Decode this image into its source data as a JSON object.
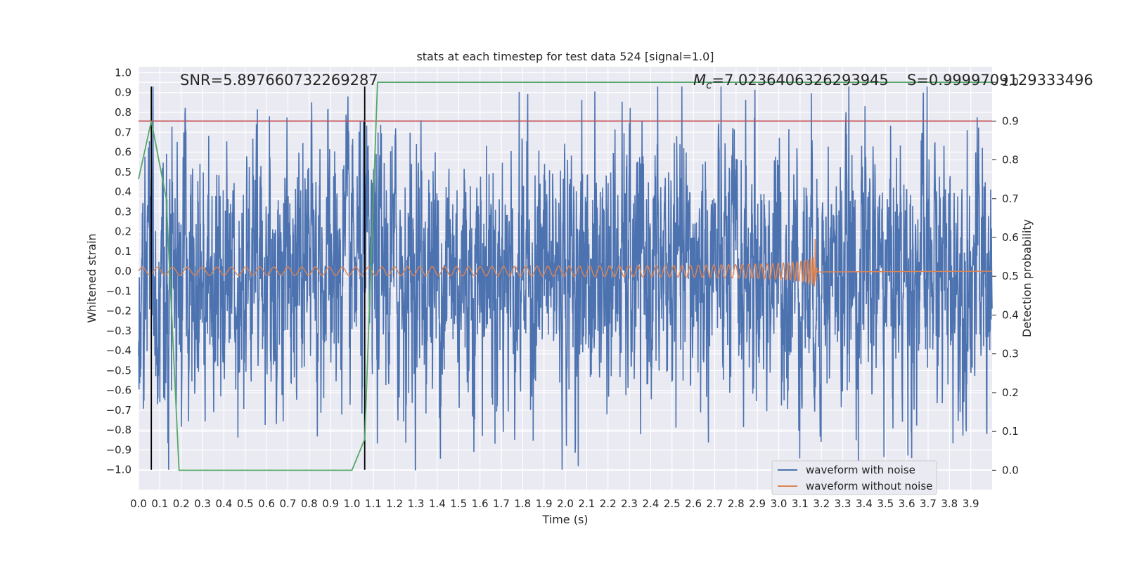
{
  "chart_data": {
    "type": "line",
    "title": "stats at each timestep for test data 524 [signal=1.0]",
    "xlabel": "Time (s)",
    "ylabel": "Whitened strain",
    "y2label": "Detection probability",
    "xlim": [
      0.0,
      4.0
    ],
    "ylim": [
      -1.1,
      1.03
    ],
    "y2lim": [
      -0.05,
      1.04
    ],
    "x_ticks": [
      "0.0",
      "0.1",
      "0.2",
      "0.3",
      "0.4",
      "0.5",
      "0.6",
      "0.7",
      "0.8",
      "0.9",
      "1.0",
      "1.1",
      "1.2",
      "1.3",
      "1.4",
      "1.5",
      "1.6",
      "1.7",
      "1.8",
      "1.9",
      "2.0",
      "2.1",
      "2.2",
      "2.3",
      "2.4",
      "2.5",
      "2.6",
      "2.7",
      "2.8",
      "2.9",
      "3.0",
      "3.1",
      "3.2",
      "3.3",
      "3.4",
      "3.5",
      "3.6",
      "3.7",
      "3.8",
      "3.9"
    ],
    "y_ticks": [
      "1.0",
      "0.9",
      "0.8",
      "0.7",
      "0.6",
      "0.5",
      "0.4",
      "0.3",
      "0.2",
      "0.1",
      "0.0",
      "−0.1",
      "−0.2",
      "−0.3",
      "−0.4",
      "−0.5",
      "−0.6",
      "−0.7",
      "−0.8",
      "−0.9",
      "−1.0"
    ],
    "y2_ticks": [
      "1.0",
      "0.9",
      "0.8",
      "0.7",
      "0.6",
      "0.5",
      "0.4",
      "0.3",
      "0.2",
      "0.1",
      "0.0"
    ],
    "grid": true,
    "legend": {
      "position": "bottom-right",
      "entries": [
        {
          "label": "waveform with noise",
          "color": "#4c72b0"
        },
        {
          "label": "waveform without noise",
          "color": "#dd8452"
        }
      ]
    },
    "annotations": {
      "snr": "SNR=5.897660732269287",
      "mc_symbol": "M",
      "mc_sub": "c",
      "mc_value": "=7.0236406326293945",
      "s": "S=0.9999709129333496"
    },
    "series": [
      {
        "name": "waveform with noise",
        "color": "#4c72b0",
        "axis": "left",
        "kind": "noise",
        "x_range": [
          0.0,
          4.0
        ],
        "typical_amplitude": 0.45,
        "max_peak": 0.93,
        "min_trough": -1.0
      },
      {
        "name": "waveform without noise",
        "color": "#dd8452",
        "axis": "left",
        "kind": "chirp",
        "x_range": [
          0.0,
          3.18
        ],
        "start_amplitude": 0.02,
        "peak_amplitude": 0.22,
        "merger_time": 3.17,
        "flat_after": 3.18
      },
      {
        "name": "detection probability",
        "color": "#55a868",
        "axis": "right",
        "x": [
          0.0,
          0.06,
          0.13,
          0.19,
          0.25,
          0.5,
          1.0,
          1.06,
          1.12,
          4.0
        ],
        "y": [
          0.75,
          0.9,
          0.7,
          0.0,
          0.0,
          0.0,
          0.0,
          0.08,
          1.0,
          1.0
        ]
      }
    ],
    "threshold": {
      "value": 0.9,
      "axis": "right",
      "color": "#c44e52"
    },
    "vertical_markers": [
      {
        "x": 0.06,
        "y_top": 0.93,
        "y_bottom": -1.0,
        "color": "#000000"
      },
      {
        "x": 1.06,
        "y_top": 0.93,
        "y_bottom": -1.0,
        "color": "#000000"
      }
    ]
  }
}
